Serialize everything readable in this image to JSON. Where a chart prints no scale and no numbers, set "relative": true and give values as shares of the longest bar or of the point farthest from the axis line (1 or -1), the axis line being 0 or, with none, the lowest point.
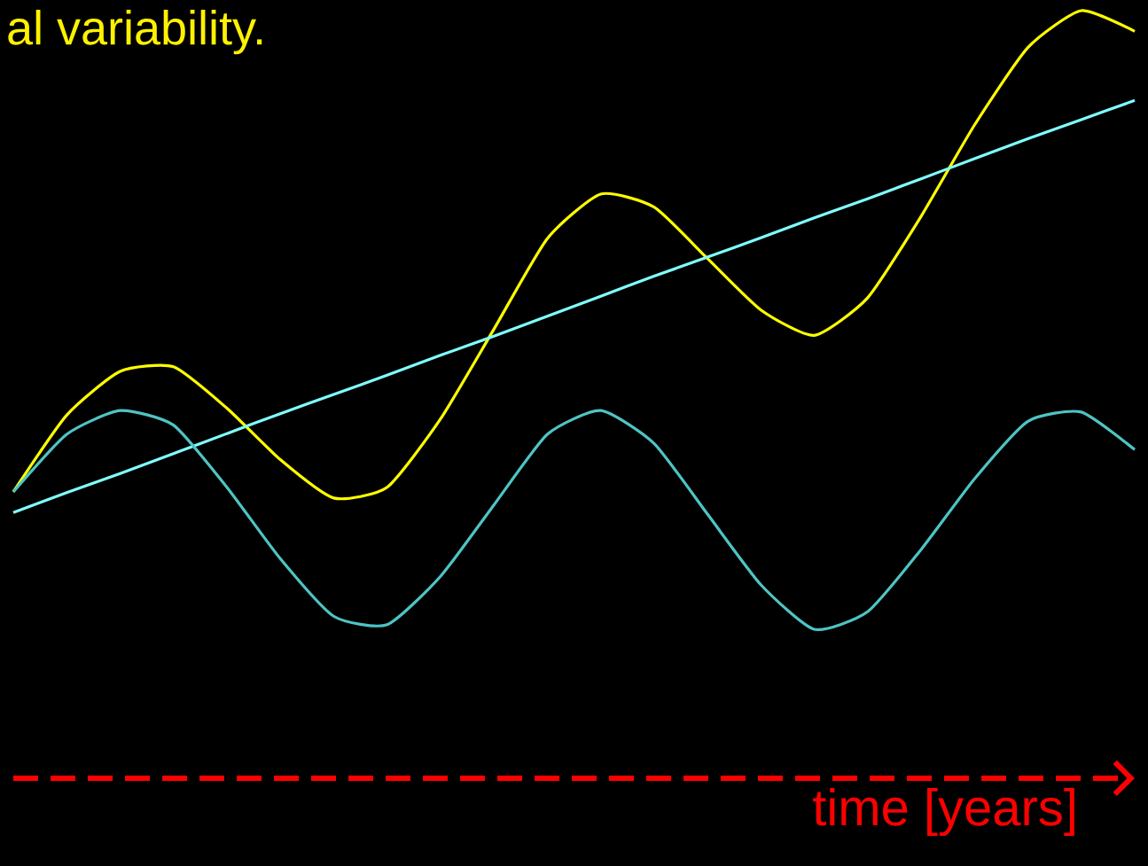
{
  "chart_data": {
    "type": "line",
    "relative": true,
    "xlabel": "time   [years]",
    "annotations": [
      "al variability."
    ],
    "categories": [
      null,
      null,
      null,
      null,
      null,
      null,
      null,
      null,
      null,
      null,
      null,
      null,
      null,
      null,
      null,
      null,
      null,
      null,
      null,
      null,
      null,
      null
    ],
    "series": [
      {
        "color": "#ffff00",
        "values": [
          0.373,
          0.473,
          0.53,
          0.536,
          0.482,
          0.415,
          0.365,
          0.379,
          0.468,
          0.585,
          0.703,
          0.761,
          0.744,
          0.677,
          0.61,
          0.577,
          0.626,
          0.732,
          0.851,
          0.952,
          1,
          0.973
        ]
      },
      {
        "color": "#80ffff",
        "values": [
          0.346,
          0.372,
          0.397,
          0.423,
          0.449,
          0.475,
          0.5,
          0.525,
          0.551,
          0.576,
          0.602,
          0.628,
          0.654,
          0.679,
          0.704,
          0.73,
          0.755,
          0.781,
          0.807,
          0.833,
          0.858,
          0.883
        ]
      },
      {
        "color": "#4fc4c4",
        "values": [
          0.373,
          0.448,
          0.479,
          0.46,
          0.379,
          0.286,
          0.211,
          0.2,
          0.263,
          0.356,
          0.448,
          0.479,
          0.436,
          0.344,
          0.252,
          0.194,
          0.217,
          0.298,
          0.39,
          0.465,
          0.477,
          0.428
        ]
      }
    ]
  }
}
